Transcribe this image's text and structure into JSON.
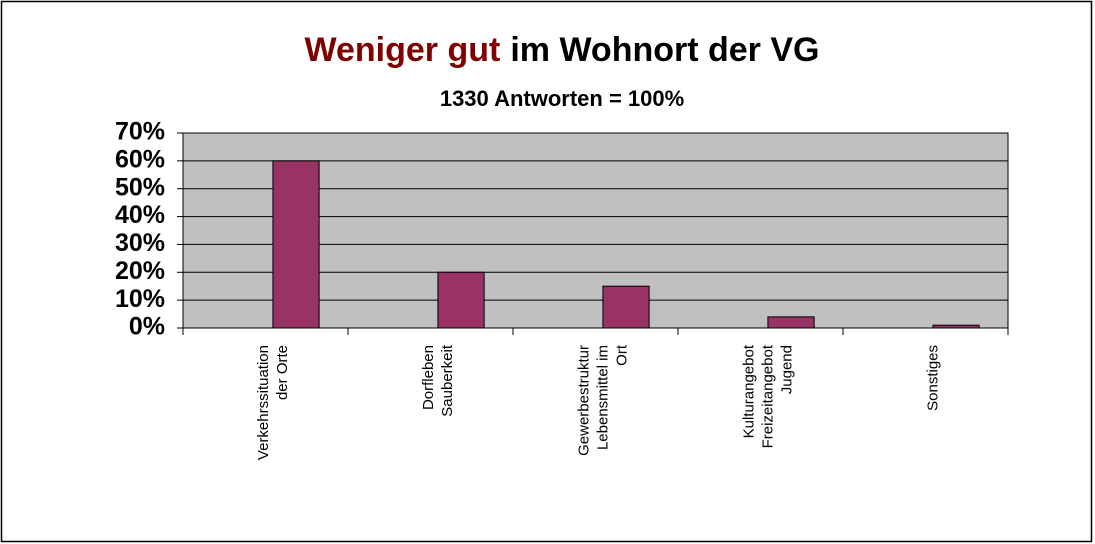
{
  "chart_data": {
    "type": "bar",
    "title": [
      {
        "text": "Weniger gut",
        "color": "#800000"
      },
      {
        "text": "im Wohnort der VG",
        "color": "#000000"
      }
    ],
    "subtitle": "1330 Antworten = 100%",
    "categories": [
      [
        "Verkehrssituation",
        "der Orte"
      ],
      [
        "Dorfleben",
        "Sauberkeit"
      ],
      [
        "Gewerbestruktur",
        "Lebensmittel im",
        "Ort"
      ],
      [
        "Kulturangebot",
        "Freizeitangebot",
        "Jugend"
      ],
      [
        "Sonstiges"
      ]
    ],
    "values": [
      60,
      20,
      15,
      4,
      1
    ],
    "color": "#993366",
    "plot_background": "#c0c0c0",
    "ylim": [
      0,
      70
    ],
    "yticks": [
      {
        "value": 0,
        "label": "0%"
      },
      {
        "value": 10,
        "label": "10%"
      },
      {
        "value": 20,
        "label": "20%"
      },
      {
        "value": 30,
        "label": "30%"
      },
      {
        "value": 40,
        "label": "40%"
      },
      {
        "value": 50,
        "label": "50%"
      },
      {
        "value": 60,
        "label": "60%"
      },
      {
        "value": 70,
        "label": "70%"
      }
    ],
    "grid": true
  }
}
